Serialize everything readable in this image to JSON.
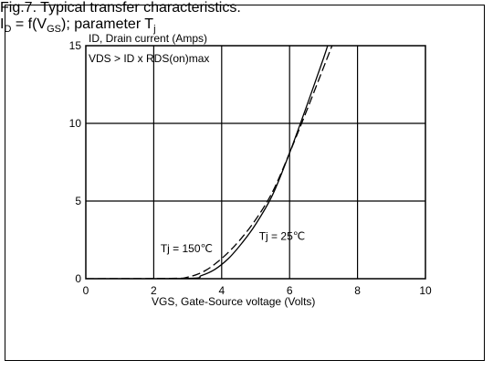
{
  "chart_data": {
    "type": "line",
    "y_title": "ID, Drain current (Amps)",
    "x_title": "VGS, Gate-Source voltage (Volts)",
    "condition": "VDS > ID x RDS(on)max",
    "xlim": [
      0,
      10
    ],
    "ylim": [
      0,
      15
    ],
    "x_ticks": [
      0,
      2,
      4,
      6,
      8,
      10
    ],
    "y_ticks": [
      0,
      5,
      10,
      15
    ],
    "grid": true,
    "series": [
      {
        "name": "Tj = 150℃",
        "style": "dashed",
        "points": [
          [
            0,
            0
          ],
          [
            2.5,
            0.02
          ],
          [
            3.0,
            0.1
          ],
          [
            3.5,
            0.5
          ],
          [
            4.0,
            1.3
          ],
          [
            4.5,
            2.4
          ],
          [
            5.0,
            3.8
          ],
          [
            5.5,
            5.6
          ],
          [
            6.0,
            8.1
          ],
          [
            6.5,
            10.8
          ],
          [
            7.0,
            13.6
          ],
          [
            7.25,
            15.0
          ]
        ]
      },
      {
        "name": "Tj = 25℃",
        "style": "solid",
        "points": [
          [
            0,
            0
          ],
          [
            3.0,
            0.02
          ],
          [
            3.4,
            0.2
          ],
          [
            3.8,
            0.6
          ],
          [
            4.2,
            1.3
          ],
          [
            4.6,
            2.3
          ],
          [
            5.0,
            3.5
          ],
          [
            5.5,
            5.4
          ],
          [
            6.0,
            8.1
          ],
          [
            6.5,
            11.1
          ],
          [
            7.0,
            14.2
          ],
          [
            7.12,
            15.0
          ]
        ]
      }
    ],
    "annotations": [
      {
        "text": "Tj = 150℃",
        "x": 2.2,
        "y": 1.7
      },
      {
        "text": "Tj = 25℃",
        "x": 5.1,
        "y": 2.5
      }
    ]
  },
  "caption": {
    "line1": "Fig.7.  Typical transfer characteristics.",
    "line2_prefix": "I",
    "line2_sub1": "D",
    "line2_mid": " = f(V",
    "line2_sub2": "GS",
    "line2_suffix": "); parameter T",
    "line2_sub3": "j"
  }
}
